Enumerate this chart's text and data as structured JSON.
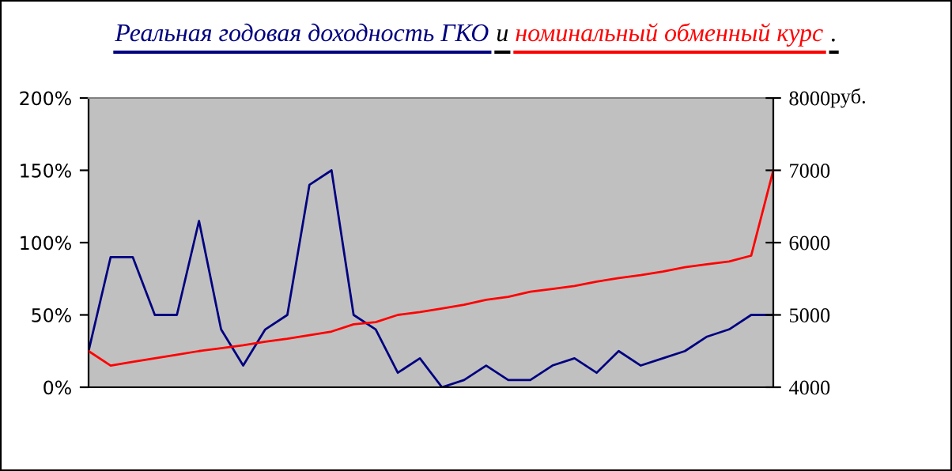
{
  "chart_data": {
    "type": "line",
    "categories": [
      null,
      null,
      null,
      null,
      null,
      null,
      null,
      null,
      null,
      null,
      null,
      null,
      null,
      null,
      null,
      null,
      null,
      null,
      null,
      null,
      null,
      null,
      null,
      null,
      null,
      null,
      null,
      null,
      null,
      null,
      null,
      null
    ],
    "series": [
      {
        "name": "Реальная годовая доходность ГКО",
        "color": "#000080",
        "values": [
          25,
          90,
          90,
          50,
          50,
          115,
          40,
          15,
          40,
          50,
          140,
          150,
          50,
          40,
          10,
          20,
          0,
          5,
          15,
          5,
          5,
          15,
          20,
          10,
          25,
          15,
          20,
          25,
          35,
          40,
          50,
          50
        ]
      },
      {
        "name": "номинальный обменный курс",
        "color": "#ff0000",
        "axis": "y2",
        "values": [
          4500,
          4300,
          4350,
          4400,
          4450,
          4500,
          4540,
          4580,
          4630,
          4670,
          4720,
          4770,
          4870,
          4900,
          5000,
          5040,
          5090,
          5140,
          5210,
          5250,
          5320,
          5360,
          5400,
          5460,
          5510,
          5550,
          5600,
          5660,
          5700,
          5740,
          5820,
          7000
        ]
      }
    ],
    "annotations": [
      "и",
      "."
    ],
    "legend": "top",
    "y2label": "руб.",
    "ylim": [
      0,
      200
    ],
    "yticks": [
      {
        "value": 0,
        "label": "0%"
      },
      {
        "value": 50,
        "label": "50%"
      },
      {
        "value": 100,
        "label": "100%"
      },
      {
        "value": 150,
        "label": "150%"
      },
      {
        "value": 200,
        "label": "200%"
      }
    ],
    "y2lim": [
      4000,
      8000
    ],
    "y2ticks": [
      4000,
      5000,
      6000,
      7000,
      8000
    ],
    "tick_labels": "y",
    "marker": "none",
    "line_style": "solid",
    "grid": false
  }
}
